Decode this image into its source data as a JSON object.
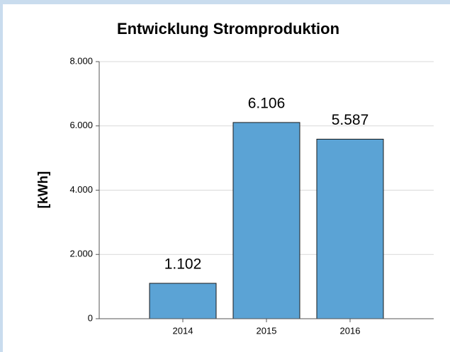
{
  "chart_data": {
    "type": "bar",
    "title": "Entwicklung Stromproduktion",
    "y_label": "[kWh]",
    "categories": [
      "2014",
      "2015",
      "2016"
    ],
    "values": [
      1102,
      6106,
      5587
    ],
    "value_labels": [
      "1.102",
      "6.106",
      "5.587"
    ],
    "color": "#5ba3d5",
    "ylim": [
      0,
      8000
    ],
    "yticks": [
      0,
      {
        "value": 2000,
        "label": "2.000"
      },
      {
        "value": 4000,
        "label": "4.000"
      },
      {
        "value": 6000,
        "label": "6.000"
      },
      {
        "value": 8000,
        "label": "8.000"
      }
    ],
    "grid": true
  }
}
